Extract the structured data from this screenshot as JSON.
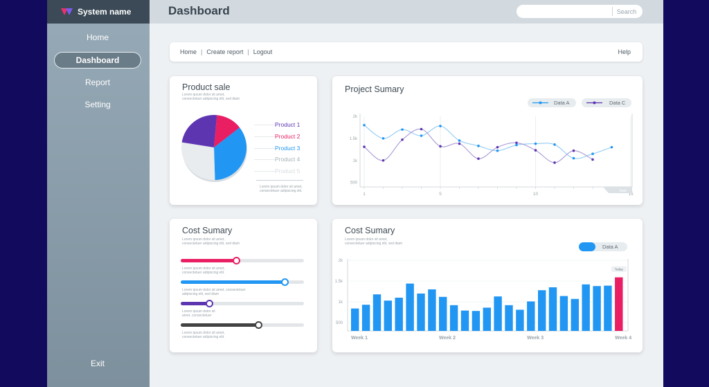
{
  "app": {
    "brand_name": "System name"
  },
  "colors": {
    "sidebar": "#8a9da9",
    "primary_blue": "#2196f3",
    "red": "#e91e63",
    "purple": "#673ab7",
    "dark": "#424242",
    "frame": "#120a5c"
  },
  "sidebar": {
    "items": [
      {
        "label": "Home",
        "active": false
      },
      {
        "label": "Dashboard",
        "active": true
      },
      {
        "label": "Report",
        "active": false
      },
      {
        "label": "Setting",
        "active": false
      }
    ],
    "exit_label": "Exit"
  },
  "header": {
    "title": "Dashboard",
    "search_placeholder": "",
    "search_button": "Search"
  },
  "breadcrumb": {
    "links": [
      "Home",
      "Create report",
      "Logout"
    ],
    "separator": "|",
    "help": "Help"
  },
  "product_sale": {
    "title": "Product sale",
    "subtitle_1": "Lorem ipsum dolor sit amet,",
    "subtitle_2": "consectetuer adipiscing elit, sed diam",
    "footnote_1": "Lorem ipsum dolor sit amet,",
    "footnote_2": "consectetuer adipiscing elit.",
    "products": [
      {
        "label": "Product 1",
        "color": "#5e35b1"
      },
      {
        "label": "Product 2",
        "color": "#e91e63"
      },
      {
        "label": "Product 3",
        "color": "#2196f3"
      },
      {
        "label": "Product 4",
        "color": "#a7b0b6"
      },
      {
        "label": "Product 5",
        "color": "#d6dbdf"
      }
    ]
  },
  "project_summary": {
    "title": "Project Sumary",
    "legend": [
      {
        "label": "Data A",
        "color": "#2196f3"
      },
      {
        "label": "Data C",
        "color": "#5e35b1"
      }
    ],
    "corner_label": "Date"
  },
  "cost_summary_a": {
    "title": "Cost Sumary",
    "subtitle_1": "Lorem ipsum dolor sit amet,",
    "subtitle_2": "consectetuer adipiscing elit, sed diam",
    "sliders": [
      {
        "value": 0.45,
        "color": "#e91e63",
        "caption_1": "Lorem ipsum dolor sit amet,",
        "caption_2": "consectetuer adipiscing elit."
      },
      {
        "value": 0.84,
        "color": "#2196f3",
        "caption_1": "Lorem ipsum dolor sit amet, consectetuer",
        "caption_2": "adipiscing elit, sed diam"
      },
      {
        "value": 0.23,
        "color": "#5e35b1",
        "caption_1": "Lorem ipsum dolor sit",
        "caption_2": "amet, consectetuer"
      },
      {
        "value": 0.63,
        "color": "#424242",
        "caption_1": "Lorem ipsum dolor sit amet,",
        "caption_2": "consectetuer adipiscing elit."
      }
    ]
  },
  "cost_summary_b": {
    "title": "Cost Sumary",
    "subtitle_1": "Lorem ipsum dolor sit amet,",
    "subtitle_2": "consectetuer adipiscing elit, sed diam",
    "legend": "Data A",
    "today_label": "Today"
  },
  "chart_data": [
    {
      "type": "pie",
      "title": "Product sale",
      "categories": [
        "Product 1",
        "Product 2",
        "Product 3",
        "Product 4"
      ],
      "values": [
        24,
        13,
        35,
        28
      ],
      "colors": [
        "#5e35b1",
        "#e91e63",
        "#2196f3",
        "#e8ecef"
      ]
    },
    {
      "type": "line",
      "title": "Project Sumary",
      "x": [
        1,
        2,
        3,
        4,
        5,
        6,
        7,
        8,
        9,
        10,
        11,
        12,
        13,
        14,
        15
      ],
      "xticks": [
        "1",
        "5",
        "10",
        "15"
      ],
      "yticks": [
        "500",
        "1k",
        "1.5k",
        "2k"
      ],
      "ylim": [
        400,
        2000
      ],
      "series": [
        {
          "name": "Data A",
          "color": "#2196f3",
          "values": [
            1800,
            1500,
            1700,
            1560,
            1780,
            1450,
            1330,
            1220,
            1350,
            1380,
            1360,
            1050,
            1150,
            1300,
            null
          ]
        },
        {
          "name": "Data C",
          "color": "#5e35b1",
          "values": [
            1310,
            1000,
            1470,
            1710,
            1320,
            1380,
            1040,
            1300,
            1400,
            1230,
            950,
            1220,
            1020,
            null,
            null
          ]
        }
      ]
    },
    {
      "type": "bar",
      "title": "Cost Sumary",
      "series_name": "Data A",
      "xticks": [
        "Week 1",
        "Week 2",
        "Week 3",
        "Week 4"
      ],
      "yticks": [
        "500",
        "1k",
        "1.5k",
        "2k"
      ],
      "ylim": [
        300,
        2000
      ],
      "values": [
        840,
        930,
        1180,
        1030,
        1100,
        1440,
        1200,
        1300,
        1120,
        920,
        790,
        780,
        860,
        1130,
        920,
        810,
        1010,
        1280,
        1350,
        1140,
        1070,
        1420,
        1380,
        1390,
        1590
      ],
      "highlight_index": 24,
      "bar_color": "#2196f3",
      "highlight_color": "#e91e63"
    }
  ]
}
